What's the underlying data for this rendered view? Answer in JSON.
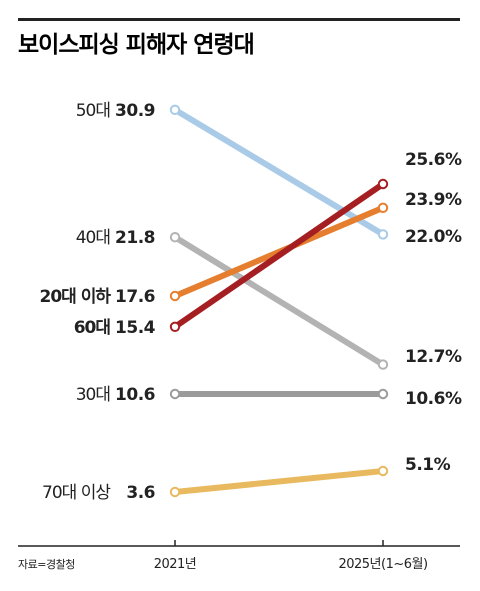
{
  "chart_data": {
    "type": "line",
    "title": "보이스피싱 피해자 연령대",
    "source": "자료=경찰청",
    "categories": [
      "2021년",
      "2025년(1~6월)"
    ],
    "series": [
      {
        "name": "50대",
        "values": [
          30.9,
          22.0
        ],
        "start_label": "30.9",
        "end_label": "22.0%",
        "color": "#a9cbe8",
        "bold_name": false
      },
      {
        "name": "40대",
        "values": [
          21.8,
          12.7
        ],
        "start_label": "21.8",
        "end_label": "12.7%",
        "color": "#b3b3b3",
        "bold_name": false
      },
      {
        "name": "20대 이하",
        "values": [
          17.6,
          23.9
        ],
        "start_label": "17.6",
        "end_label": "23.9%",
        "color": "#e57e2e",
        "bold_name": true
      },
      {
        "name": "60대",
        "values": [
          15.4,
          25.6
        ],
        "start_label": "15.4",
        "end_label": "25.6%",
        "color": "#a51e22",
        "bold_name": true
      },
      {
        "name": "30대",
        "values": [
          10.6,
          10.6
        ],
        "start_label": "10.6",
        "end_label": "10.6%",
        "color": "#9b9b9b",
        "bold_name": false
      },
      {
        "name": "70대 이상",
        "values": [
          3.6,
          5.1
        ],
        "start_label": "3.6",
        "end_label": "5.1%",
        "color": "#e8b95e",
        "bold_name": false
      }
    ]
  }
}
